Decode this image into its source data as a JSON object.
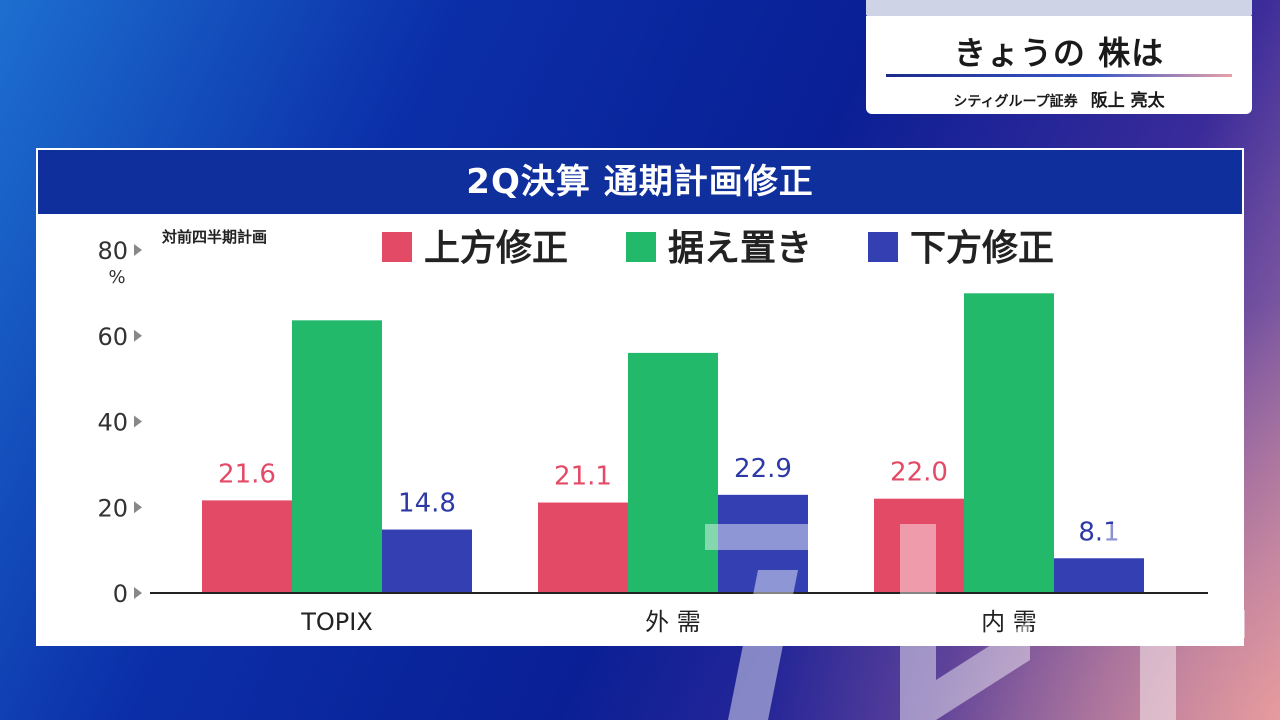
{
  "caption": {
    "title": "きょうの 株は",
    "org": "シティグループ証券",
    "person": "阪上 亮太"
  },
  "panel": {
    "title": "2Q決算 通期計画修正",
    "note": "対前四半期計画",
    "y_unit": "%"
  },
  "colors": {
    "up": "#e34a66",
    "keep": "#22b96b",
    "down": "#3440b2",
    "header": "#0f2f9c"
  },
  "chart_data": {
    "type": "bar",
    "categories": [
      "TOPIX",
      "外 需",
      "内 需"
    ],
    "series": [
      {
        "name": "上方修正",
        "values": [
          21.6,
          21.1,
          22.0
        ],
        "labels": [
          "21.6",
          "21.1",
          "22.0"
        ],
        "color": "#e34a66",
        "label_color": "#e34a66"
      },
      {
        "name": "据え置き",
        "values": [
          63.6,
          56.0,
          69.9
        ],
        "labels": [
          "",
          "",
          ""
        ],
        "color": "#22b96b",
        "label_color": "#22b96b"
      },
      {
        "name": "下方修正",
        "values": [
          14.8,
          22.9,
          8.1
        ],
        "labels": [
          "14.8",
          "22.9",
          "8.1"
        ],
        "color": "#3440b2",
        "label_color": "#2d3aa6"
      }
    ],
    "yticks": [
      "0",
      "20",
      "40",
      "60",
      "80"
    ],
    "ylim": [
      0,
      80
    ],
    "legend": "top",
    "grid": false
  }
}
